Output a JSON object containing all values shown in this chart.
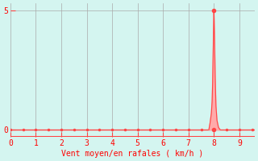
{
  "title": "",
  "xlabel": "Vent moyen/en rafales é km/h û",
  "xlabel_display": "Vent moyen/en rafales ( km/h )",
  "ylabel": "",
  "bg_color": "#d4f5f0",
  "grid_color": "#aaaaaa",
  "line_color": "#ff4444",
  "fill_color": "#ffaaaa",
  "hline_color": "#ff4444",
  "tick_color": "#ff4444",
  "label_color": "#ff0000",
  "xlim": [
    0,
    9.6
  ],
  "ylim": [
    -0.3,
    5.3
  ],
  "yticks": [
    0,
    5
  ],
  "xticks": [
    0,
    1,
    2,
    3,
    4,
    5,
    6,
    7,
    8,
    9
  ],
  "spike_x": [
    7.8,
    7.85,
    7.9,
    7.93,
    7.95,
    7.97,
    7.99,
    8.0,
    8.01,
    8.03,
    8.05,
    8.08,
    8.12,
    8.18,
    8.25
  ],
  "spike_y": [
    0,
    0.3,
    0.7,
    1.2,
    2.0,
    3.2,
    4.5,
    5.0,
    4.6,
    3.5,
    2.2,
    1.0,
    0.4,
    0.1,
    0
  ],
  "marker_x": [
    8.0
  ],
  "marker_y": [
    0
  ],
  "top_marker_x": [
    8.0
  ],
  "top_marker_y": [
    5.0
  ]
}
